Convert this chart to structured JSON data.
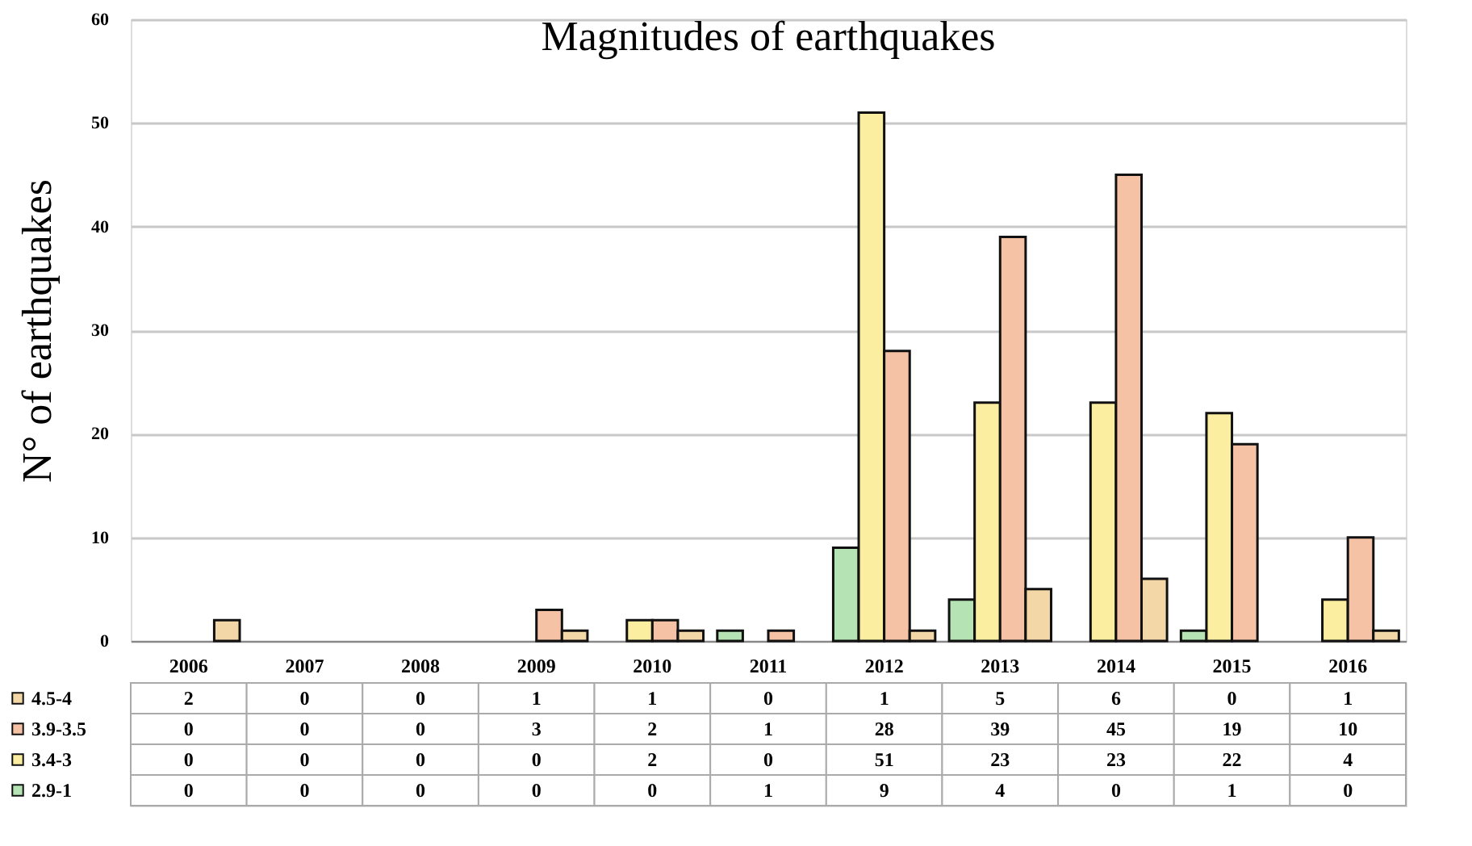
{
  "chart_data": {
    "type": "bar",
    "title": "Magnitudes of earthquakes",
    "ylabel": "N° of earthquakes",
    "categories": [
      "2006",
      "2007",
      "2008",
      "2009",
      "2010",
      "2011",
      "2012",
      "2013",
      "2014",
      "2015",
      "2016"
    ],
    "series": [
      {
        "name": "2.9-1",
        "color": "#b5e3b3",
        "values": [
          0,
          0,
          0,
          0,
          0,
          1,
          9,
          4,
          0,
          1,
          0
        ]
      },
      {
        "name": "3.4-3",
        "color": "#fbeea0",
        "values": [
          0,
          0,
          0,
          0,
          2,
          0,
          51,
          23,
          23,
          22,
          4
        ]
      },
      {
        "name": "3.9-3.5",
        "color": "#f6c2a6",
        "values": [
          0,
          0,
          0,
          3,
          2,
          1,
          28,
          39,
          45,
          19,
          10
        ]
      },
      {
        "name": "4.5-4",
        "color": "#f3d7a6",
        "values": [
          2,
          0,
          0,
          1,
          1,
          0,
          1,
          5,
          6,
          0,
          1
        ]
      }
    ],
    "ylim": [
      0,
      60
    ],
    "yticks": [
      0,
      10,
      20,
      30,
      40,
      50,
      60
    ],
    "grid": "y",
    "data_labels": true,
    "legend": "bottom"
  }
}
